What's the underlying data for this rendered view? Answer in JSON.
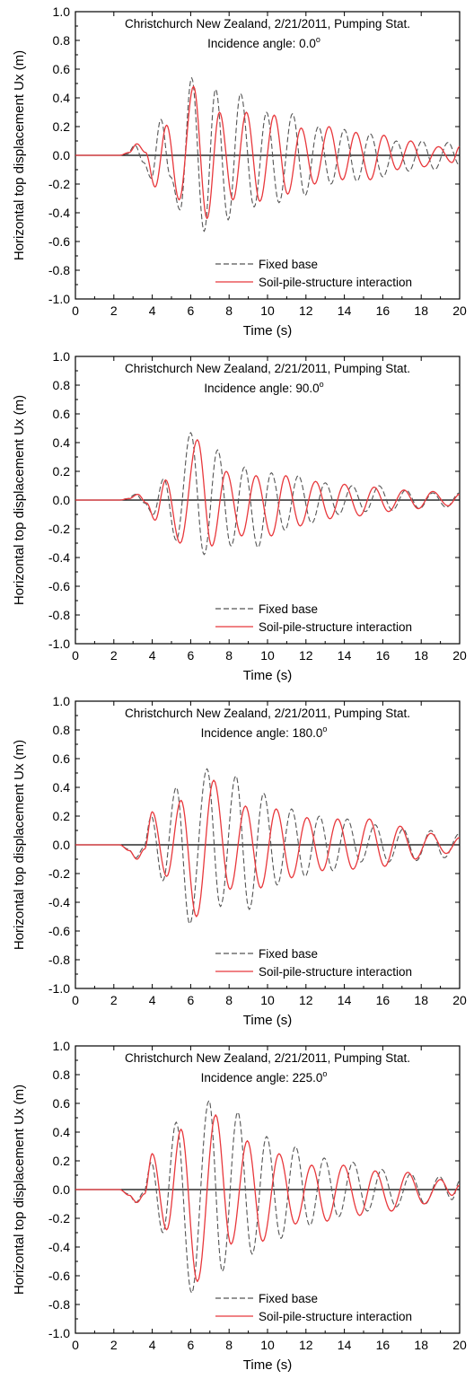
{
  "chart_data": [
    {
      "type": "line",
      "title": "Christchurch New Zealand, 2/21/2011, Pumping Stat.",
      "subtitle": "Incidence angle: 0.0",
      "subtitle_sup": "o",
      "xlabel": "Time (s)",
      "ylabel": "Horizontal top displacement Ux (m)",
      "xlim": [
        0,
        20
      ],
      "ylim": [
        -1.0,
        1.0
      ],
      "xticks": [
        "0",
        "2",
        "4",
        "6",
        "8",
        "10",
        "12",
        "14",
        "16",
        "18",
        "20"
      ],
      "yticks": [
        "1.0",
        "0.8",
        "0.6",
        "0.4",
        "0.2",
        "0.0",
        "-0.2",
        "-0.4",
        "-0.6",
        "-0.8",
        "-1.0"
      ],
      "legend_position": "bottom-right",
      "series": [
        {
          "name": "Fixed base",
          "color": "#555555",
          "style": "dashed",
          "x": [
            0,
            2.3,
            2.7,
            3.1,
            3.55,
            3.95,
            4.45,
            4.95,
            5.45,
            6.05,
            6.7,
            7.3,
            7.95,
            8.6,
            9.3,
            9.95,
            10.6,
            11.3,
            11.95,
            12.65,
            13.3,
            14.0,
            14.65,
            15.35,
            16.0,
            16.7,
            17.35,
            18.05,
            18.7,
            19.4,
            20.0
          ],
          "y": [
            0,
            0,
            0.01,
            0.07,
            -0.05,
            -0.16,
            0.25,
            -0.15,
            -0.38,
            0.54,
            -0.53,
            0.46,
            -0.45,
            0.43,
            -0.36,
            0.3,
            -0.33,
            0.29,
            -0.28,
            0.2,
            -0.2,
            0.18,
            -0.18,
            0.15,
            -0.15,
            0.1,
            -0.11,
            0.1,
            -0.1,
            0.09,
            -0.07
          ]
        },
        {
          "name": "Soil-pile-structure interaction",
          "color": "#e8383c",
          "style": "solid",
          "x": [
            0,
            2.3,
            2.8,
            3.2,
            3.65,
            4.15,
            4.75,
            5.4,
            6.15,
            6.85,
            7.5,
            8.2,
            8.9,
            9.6,
            10.35,
            11.05,
            11.75,
            12.45,
            13.2,
            13.9,
            14.6,
            15.35,
            16.05,
            16.75,
            17.45,
            18.15,
            18.9,
            19.6,
            20.0
          ],
          "y": [
            0,
            0,
            0.02,
            0.08,
            0.02,
            -0.22,
            0.21,
            -0.31,
            0.48,
            -0.44,
            0.3,
            -0.31,
            0.3,
            -0.32,
            0.28,
            -0.27,
            0.19,
            -0.2,
            0.2,
            -0.17,
            0.16,
            -0.17,
            0.14,
            -0.1,
            0.1,
            -0.08,
            0.06,
            -0.05,
            0.06
          ]
        }
      ]
    },
    {
      "type": "line",
      "title": "Christchurch New Zealand, 2/21/2011, Pumping Stat.",
      "subtitle": "Incidence angle: 90.0",
      "subtitle_sup": "o",
      "xlabel": "Time (s)",
      "ylabel": "Horizontal top displacement Ux (m)",
      "xlim": [
        0,
        20
      ],
      "ylim": [
        -1.0,
        1.0
      ],
      "xticks": [
        "0",
        "2",
        "4",
        "6",
        "8",
        "10",
        "12",
        "14",
        "16",
        "18",
        "20"
      ],
      "yticks": [
        "1.0",
        "0.8",
        "0.6",
        "0.4",
        "0.2",
        "0.0",
        "-0.2",
        "-0.4",
        "-0.6",
        "-0.8",
        "-1.0"
      ],
      "legend_position": "bottom-right",
      "series": [
        {
          "name": "Fixed base",
          "color": "#555555",
          "style": "dashed",
          "x": [
            0,
            2.3,
            2.7,
            3.15,
            3.6,
            4.05,
            4.6,
            5.25,
            6.0,
            6.7,
            7.4,
            8.1,
            8.8,
            9.5,
            10.2,
            10.9,
            11.6,
            12.3,
            13.0,
            13.7,
            14.4,
            15.1,
            15.8,
            16.5,
            17.2,
            17.9,
            18.6,
            19.3,
            20.0
          ],
          "y": [
            0,
            0,
            0.01,
            0.04,
            -0.02,
            -0.1,
            0.15,
            -0.28,
            0.47,
            -0.38,
            0.35,
            -0.32,
            0.23,
            -0.33,
            0.19,
            -0.21,
            0.17,
            -0.16,
            0.12,
            -0.1,
            0.1,
            -0.08,
            0.1,
            -0.07,
            0.07,
            -0.06,
            0.05,
            -0.05,
            0.05
          ]
        },
        {
          "name": "Soil-pile-structure interaction",
          "color": "#e8383c",
          "style": "solid",
          "x": [
            0,
            2.3,
            2.8,
            3.25,
            3.7,
            4.15,
            4.7,
            5.45,
            6.35,
            7.1,
            7.85,
            8.65,
            9.4,
            10.2,
            10.95,
            11.7,
            12.5,
            13.25,
            14.0,
            14.8,
            15.55,
            16.3,
            17.1,
            17.85,
            18.6,
            19.4,
            20.0
          ],
          "y": [
            0,
            0,
            0.01,
            0.04,
            -0.02,
            -0.14,
            0.14,
            -0.3,
            0.42,
            -0.32,
            0.2,
            -0.25,
            0.17,
            -0.25,
            0.17,
            -0.18,
            0.13,
            -0.13,
            0.11,
            -0.11,
            0.09,
            -0.08,
            0.07,
            -0.06,
            0.06,
            -0.04,
            0.04
          ]
        }
      ]
    },
    {
      "type": "line",
      "title": "Christchurch New Zealand, 2/21/2011, Pumping Stat.",
      "subtitle": "Incidence angle: 180.0",
      "subtitle_sup": "o",
      "xlabel": "Time (s)",
      "ylabel": "Horizontal top displacement Ux (m)",
      "xlim": [
        0,
        20
      ],
      "ylim": [
        -1.0,
        1.0
      ],
      "xticks": [
        "0",
        "2",
        "4",
        "6",
        "8",
        "10",
        "12",
        "14",
        "16",
        "18",
        "20"
      ],
      "yticks": [
        "1.0",
        "0.8",
        "0.6",
        "0.4",
        "0.2",
        "0.0",
        "-0.2",
        "-0.4",
        "-0.6",
        "-0.8",
        "-1.0"
      ],
      "legend_position": "bottom-right",
      "series": [
        {
          "name": "Fixed base",
          "color": "#555555",
          "style": "dashed",
          "x": [
            0,
            2.3,
            2.75,
            3.15,
            3.55,
            3.95,
            4.55,
            5.25,
            5.95,
            6.85,
            7.55,
            8.35,
            9.05,
            9.8,
            10.5,
            11.25,
            11.95,
            12.7,
            13.4,
            14.15,
            14.85,
            15.6,
            16.3,
            17.05,
            17.75,
            18.5,
            19.2,
            20.0
          ],
          "y": [
            0,
            0,
            -0.03,
            -0.09,
            -0.02,
            0.2,
            -0.25,
            0.4,
            -0.55,
            0.53,
            -0.43,
            0.48,
            -0.45,
            0.36,
            -0.28,
            0.25,
            -0.22,
            0.2,
            -0.18,
            0.18,
            -0.12,
            0.14,
            -0.12,
            0.11,
            -0.11,
            0.1,
            -0.09,
            0.08
          ]
        },
        {
          "name": "Soil-pile-structure interaction",
          "color": "#e8383c",
          "style": "solid",
          "x": [
            0,
            2.3,
            2.8,
            3.2,
            3.6,
            4.0,
            4.75,
            5.5,
            6.3,
            7.2,
            8.05,
            8.85,
            9.65,
            10.45,
            11.25,
            12.05,
            12.85,
            13.65,
            14.45,
            15.3,
            16.1,
            16.9,
            17.7,
            18.5,
            19.3,
            20.0
          ],
          "y": [
            0,
            0,
            -0.04,
            -0.1,
            -0.03,
            0.23,
            -0.22,
            0.31,
            -0.5,
            0.45,
            -0.31,
            0.27,
            -0.3,
            0.25,
            -0.23,
            0.19,
            -0.18,
            0.18,
            -0.17,
            0.18,
            -0.15,
            0.13,
            -0.1,
            0.08,
            -0.06,
            0.05
          ]
        }
      ]
    },
    {
      "type": "line",
      "title": "Christchurch New Zealand, 2/21/2011, Pumping Stat.",
      "subtitle": "Incidence angle: 225.0",
      "subtitle_sup": "o",
      "xlabel": "Time (s)",
      "ylabel": "Horizontal top displacement Ux (m)",
      "xlim": [
        0,
        20
      ],
      "ylim": [
        -1.0,
        1.0
      ],
      "xticks": [
        "0",
        "2",
        "4",
        "6",
        "8",
        "10",
        "12",
        "14",
        "16",
        "18",
        "20"
      ],
      "yticks": [
        "1.0",
        "0.8",
        "0.6",
        "0.4",
        "0.2",
        "0.0",
        "-0.2",
        "-0.4",
        "-0.6",
        "-0.8",
        "-1.0"
      ],
      "legend_position": "bottom-right",
      "series": [
        {
          "name": "Fixed base",
          "color": "#555555",
          "style": "dashed",
          "x": [
            0,
            2.3,
            2.75,
            3.15,
            3.55,
            3.95,
            4.55,
            5.25,
            6.05,
            6.95,
            7.65,
            8.45,
            9.2,
            9.95,
            10.7,
            11.45,
            12.2,
            12.95,
            13.7,
            14.45,
            15.2,
            15.95,
            16.7,
            17.45,
            18.2,
            18.95,
            19.6,
            20.0
          ],
          "y": [
            0,
            0,
            -0.03,
            -0.09,
            -0.02,
            0.19,
            -0.3,
            0.47,
            -0.72,
            0.62,
            -0.57,
            0.54,
            -0.45,
            0.37,
            -0.34,
            0.3,
            -0.25,
            0.22,
            -0.19,
            0.19,
            -0.15,
            0.14,
            -0.12,
            0.11,
            -0.1,
            0.09,
            -0.07,
            0.06
          ]
        },
        {
          "name": "Soil-pile-structure interaction",
          "color": "#e8383c",
          "style": "solid",
          "x": [
            0,
            2.3,
            2.8,
            3.2,
            3.6,
            4.0,
            4.75,
            5.5,
            6.35,
            7.3,
            8.1,
            8.95,
            9.75,
            10.6,
            11.45,
            12.3,
            13.1,
            13.95,
            14.8,
            15.6,
            16.45,
            17.3,
            18.15,
            19.0,
            19.6,
            20.0
          ],
          "y": [
            0,
            0,
            -0.04,
            -0.09,
            -0.03,
            0.25,
            -0.28,
            0.42,
            -0.64,
            0.52,
            -0.38,
            0.34,
            -0.36,
            0.25,
            -0.24,
            0.17,
            -0.22,
            0.17,
            -0.18,
            0.13,
            -0.15,
            0.12,
            -0.1,
            0.07,
            -0.04,
            0.03
          ]
        }
      ]
    }
  ]
}
